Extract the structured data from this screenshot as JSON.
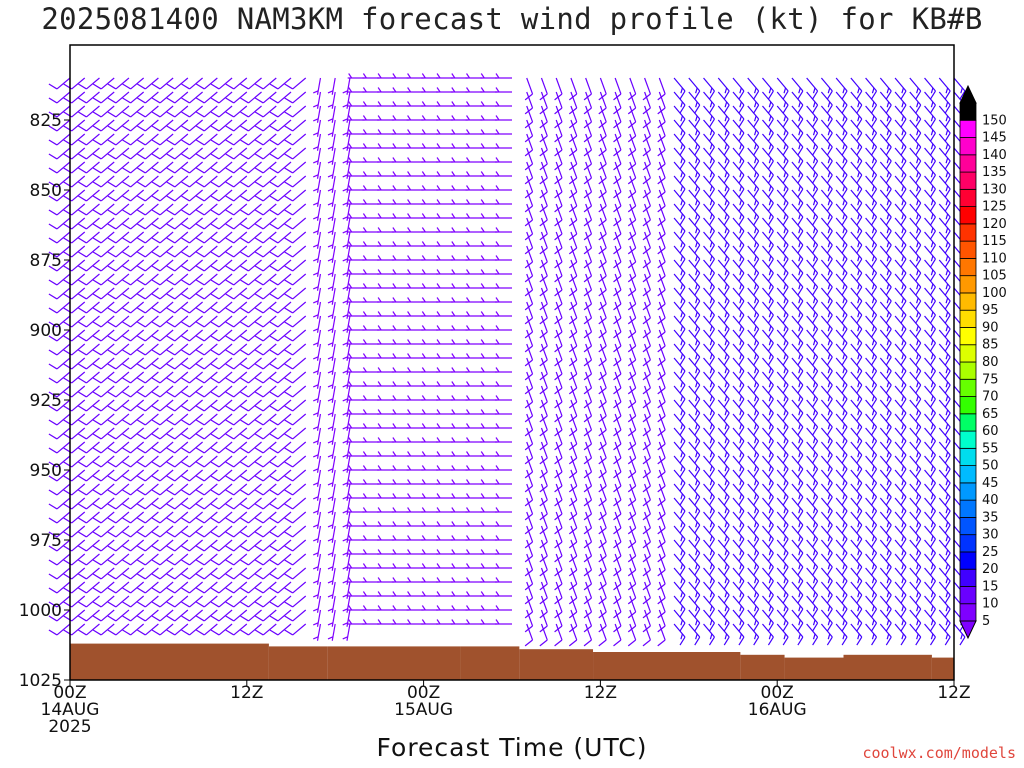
{
  "title": "2025081400 NAM3KM forecast wind profile (kt) for KB#B",
  "credit": "coolwx.com/models",
  "chart_data": {
    "type": "wind_barb_time_height",
    "title": "2025081400 NAM3KM forecast wind profile (kt) for KB#B",
    "xlabel": "Forecast Time (UTC)",
    "x_ticks": [
      {
        "hour": 0,
        "lines": [
          "00Z",
          "14AUG",
          "2025"
        ]
      },
      {
        "hour": 12,
        "lines": [
          "12Z"
        ]
      },
      {
        "hour": 24,
        "lines": [
          "00Z",
          "15AUG"
        ]
      },
      {
        "hour": 36,
        "lines": [
          "12Z"
        ]
      },
      {
        "hour": 48,
        "lines": [
          "00Z",
          "16AUG"
        ]
      },
      {
        "hour": 60,
        "lines": [
          "12Z"
        ]
      }
    ],
    "xlim_hours": [
      0,
      60
    ],
    "ylabel": "Pressure (mb)",
    "y_ticks": [
      825,
      850,
      875,
      900,
      925,
      950,
      975,
      1000,
      1025
    ],
    "ylim_mb": [
      1025,
      800
    ],
    "y_reversed": true,
    "barb_levels_mb": [
      1005,
      1000,
      995,
      990,
      985,
      980,
      975,
      970,
      965,
      960,
      955,
      950,
      945,
      940,
      935,
      930,
      925,
      920,
      915,
      910,
      905,
      900,
      895,
      890,
      885,
      880,
      875,
      870,
      865,
      860,
      855,
      850,
      845,
      840,
      835,
      830,
      825,
      820,
      815,
      810
    ],
    "barb_times_hours": [
      0,
      1,
      2,
      3,
      4,
      5,
      6,
      7,
      8,
      9,
      10,
      11,
      12,
      13,
      14,
      15,
      16,
      17,
      18,
      19,
      20,
      21,
      22,
      23,
      24,
      25,
      26,
      27,
      28,
      29,
      30,
      31,
      32,
      33,
      34,
      35,
      36,
      37,
      38,
      39,
      40,
      41,
      42,
      43,
      44,
      45,
      46,
      47,
      48,
      49,
      50,
      51,
      52,
      53,
      54,
      55,
      56,
      57,
      58,
      59,
      60
    ],
    "wind_regimes": [
      {
        "hours": [
          0,
          16
        ],
        "direction_deg": 230,
        "speed_kt": 10
      },
      {
        "hours": [
          17,
          19
        ],
        "direction_deg": 190,
        "speed_kt": 5
      },
      {
        "hours": [
          20,
          30
        ],
        "direction_deg": 270,
        "speed_kt": 5
      },
      {
        "hours": [
          31,
          40
        ],
        "direction_deg": 160,
        "speed_kt": 10
      },
      {
        "hours": [
          41,
          60
        ],
        "direction_deg": 140,
        "speed_kt": 15
      }
    ],
    "surface_pressure_mb": [
      {
        "hours": [
          0,
          13
        ],
        "value": 1012
      },
      {
        "hours": [
          14,
          17
        ],
        "value": 1013
      },
      {
        "hours": [
          18,
          26
        ],
        "value": 1013
      },
      {
        "hours": [
          27,
          30
        ],
        "value": 1013
      },
      {
        "hours": [
          31,
          35
        ],
        "value": 1014
      },
      {
        "hours": [
          36,
          45
        ],
        "value": 1015
      },
      {
        "hours": [
          46,
          48
        ],
        "value": 1016
      },
      {
        "hours": [
          49,
          52
        ],
        "value": 1017
      },
      {
        "hours": [
          53,
          58
        ],
        "value": 1016
      },
      {
        "hours": [
          59,
          60
        ],
        "value": 1017
      }
    ],
    "colorbar": {
      "label_values": [
        5,
        10,
        15,
        20,
        25,
        30,
        35,
        40,
        45,
        50,
        55,
        60,
        65,
        70,
        75,
        80,
        85,
        90,
        95,
        100,
        105,
        110,
        115,
        120,
        125,
        130,
        135,
        140,
        145,
        150
      ],
      "colors": [
        "#7f00ff",
        "#6a00ff",
        "#4000ff",
        "#0000ff",
        "#0033ff",
        "#0055ff",
        "#0077ff",
        "#0099ff",
        "#00bbff",
        "#00ddee",
        "#00ffcc",
        "#00ff66",
        "#33ff00",
        "#66ff00",
        "#aaff00",
        "#ddff00",
        "#ffff00",
        "#ffdd00",
        "#ffbb00",
        "#ff9900",
        "#ff7700",
        "#ff5500",
        "#ff3300",
        "#ff0000",
        "#ff0033",
        "#ff0066",
        "#ff0099",
        "#ff00cc",
        "#ff00ff",
        "#000000"
      ]
    },
    "colors": {
      "terrain": "#a0522d",
      "axis": "#000000"
    }
  }
}
